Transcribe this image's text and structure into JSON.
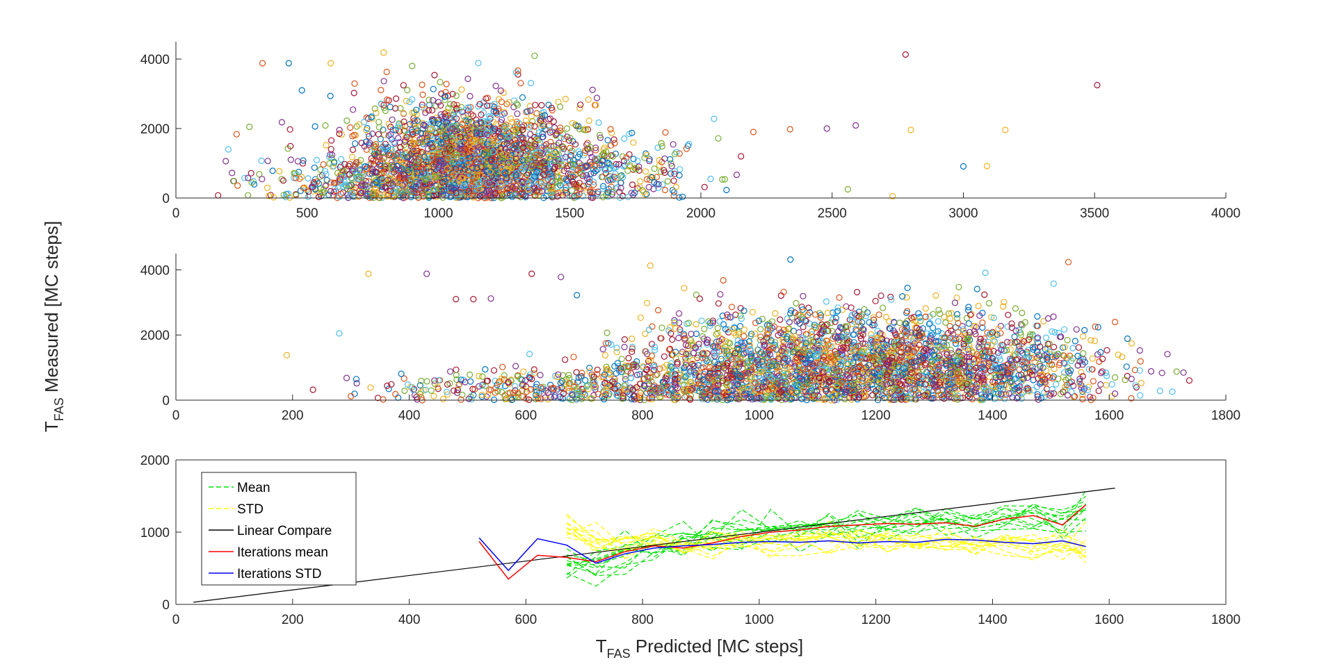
{
  "figure": {
    "ylabel_main": "T",
    "ylabel_sub": "FAS",
    "ylabel_rest": " Measured [MC steps]",
    "xlabel_main": "T",
    "xlabel_sub": "FAS",
    "xlabel_rest": " Predicted [MC steps]"
  },
  "colors": {
    "scatter_palette": [
      "#0072BD",
      "#D95319",
      "#EDB120",
      "#7E2F8E",
      "#77AC30",
      "#4DBEEE",
      "#A2142F"
    ],
    "mean": "#00E000",
    "std": "#FFFF00",
    "linear_compare": "#000000",
    "iterations_mean": "#FF0000",
    "iterations_std": "#0000FF",
    "axis": "#262626"
  },
  "chart_data": [
    {
      "type": "scatter",
      "xlim": [
        0,
        4000
      ],
      "ylim": [
        0,
        4500
      ],
      "xticks": [
        "0",
        "500",
        "1000",
        "1500",
        "2000",
        "2500",
        "3000",
        "3500",
        "4000"
      ],
      "yticks": [
        "0",
        "2000",
        "4000"
      ],
      "grid": false,
      "marker": "open-circle",
      "clusters": [
        {
          "cx": 1100,
          "cy": 1200,
          "sx": 200,
          "sy": 850,
          "n": 1700
        },
        {
          "cx": 1250,
          "cy": 800,
          "sx": 280,
          "sy": 700,
          "n": 600
        },
        {
          "cx": 750,
          "cy": 400,
          "sx": 220,
          "sy": 450,
          "n": 350
        },
        {
          "cx": 1500,
          "cy": 600,
          "sx": 300,
          "sy": 500,
          "n": 250
        }
      ],
      "outliers": [
        [
          200,
          1400
        ],
        [
          280,
          2050
        ],
        [
          330,
          3880
        ],
        [
          430,
          3880
        ],
        [
          480,
          3100
        ],
        [
          590,
          3880
        ],
        [
          900,
          3800
        ],
        [
          2780,
          4130
        ],
        [
          2800,
          1960
        ],
        [
          3000,
          910
        ],
        [
          3090,
          920
        ],
        [
          3160,
          1960
        ],
        [
          3510,
          3250
        ],
        [
          2560,
          250
        ],
        [
          2480,
          2000
        ],
        [
          2340,
          1980
        ],
        [
          2200,
          1900
        ],
        [
          2050,
          2280
        ],
        [
          2590,
          2090
        ],
        [
          2730,
          50
        ]
      ]
    },
    {
      "type": "scatter",
      "xlim": [
        0,
        1800
      ],
      "ylim": [
        0,
        4500
      ],
      "xticks": [
        "0",
        "200",
        "400",
        "600",
        "800",
        "1000",
        "1200",
        "1400",
        "1600",
        "1800"
      ],
      "yticks": [
        "0",
        "2000",
        "4000"
      ],
      "grid": false,
      "marker": "open-circle",
      "clusters": [
        {
          "cx": 1150,
          "cy": 1100,
          "sx": 170,
          "sy": 850,
          "n": 2200
        },
        {
          "cx": 900,
          "cy": 500,
          "sx": 120,
          "sy": 500,
          "n": 500
        },
        {
          "cx": 1400,
          "cy": 900,
          "sx": 120,
          "sy": 700,
          "n": 500
        },
        {
          "cx": 600,
          "cy": 300,
          "sx": 130,
          "sy": 300,
          "n": 250
        }
      ],
      "outliers": [
        [
          190,
          1380
        ],
        [
          235,
          320
        ],
        [
          280,
          2050
        ],
        [
          300,
          120
        ],
        [
          330,
          3880
        ],
        [
          430,
          3880
        ],
        [
          480,
          3100
        ],
        [
          510,
          3100
        ],
        [
          610,
          3880
        ],
        [
          660,
          3780
        ],
        [
          540,
          3120
        ],
        [
          1610,
          200
        ],
        [
          1610,
          2400
        ],
        [
          1530,
          4240
        ]
      ]
    },
    {
      "type": "line",
      "xlim": [
        0,
        1800
      ],
      "ylim": [
        0,
        2000
      ],
      "xticks": [
        "0",
        "200",
        "400",
        "600",
        "800",
        "1000",
        "1200",
        "1400",
        "1600",
        "1800"
      ],
      "yticks": [
        "0",
        "1000",
        "2000"
      ],
      "grid": false,
      "legend": "top-left",
      "x": [
        670,
        720,
        770,
        820,
        870,
        920,
        970,
        1020,
        1070,
        1120,
        1170,
        1220,
        1270,
        1320,
        1370,
        1420,
        1470,
        1520,
        1560
      ],
      "series": [
        {
          "name": "Mean",
          "style": "dashed",
          "band": "mean",
          "lines": 12,
          "spread": 120
        },
        {
          "name": "STD",
          "style": "dashed",
          "band": "std",
          "lines": 12,
          "spread": 110
        },
        {
          "name": "Linear Compare",
          "style": "solid",
          "x": [
            30,
            1610
          ],
          "values": [
            30,
            1610
          ]
        },
        {
          "name": "Iterations mean",
          "style": "solid",
          "x": [
            520,
            570,
            620,
            670,
            720,
            770,
            820,
            870,
            920,
            970,
            1020,
            1070,
            1120,
            1170,
            1220,
            1270,
            1320,
            1370,
            1420,
            1470,
            1520,
            1560
          ],
          "values": [
            870,
            350,
            680,
            650,
            590,
            730,
            810,
            780,
            850,
            940,
            1000,
            1030,
            1080,
            1100,
            1120,
            1110,
            1130,
            1080,
            1180,
            1230,
            1100,
            1380
          ]
        },
        {
          "name": "Iterations STD",
          "style": "solid",
          "x": [
            520,
            570,
            620,
            670,
            720,
            770,
            820,
            870,
            920,
            970,
            1020,
            1070,
            1120,
            1170,
            1220,
            1270,
            1320,
            1370,
            1420,
            1470,
            1520,
            1560
          ],
          "values": [
            920,
            470,
            910,
            820,
            570,
            700,
            780,
            810,
            830,
            860,
            870,
            860,
            880,
            850,
            870,
            860,
            900,
            890,
            860,
            840,
            880,
            800
          ]
        }
      ],
      "mean_profile": [
        520,
        560,
        700,
        800,
        870,
        950,
        1000,
        1050,
        1070,
        1080,
        1100,
        1120,
        1130,
        1140,
        1160,
        1200,
        1250,
        1150,
        1300
      ],
      "std_profile": [
        1000,
        850,
        800,
        950,
        800,
        820,
        850,
        860,
        870,
        880,
        870,
        850,
        860,
        850,
        860,
        830,
        790,
        800,
        780
      ]
    }
  ]
}
